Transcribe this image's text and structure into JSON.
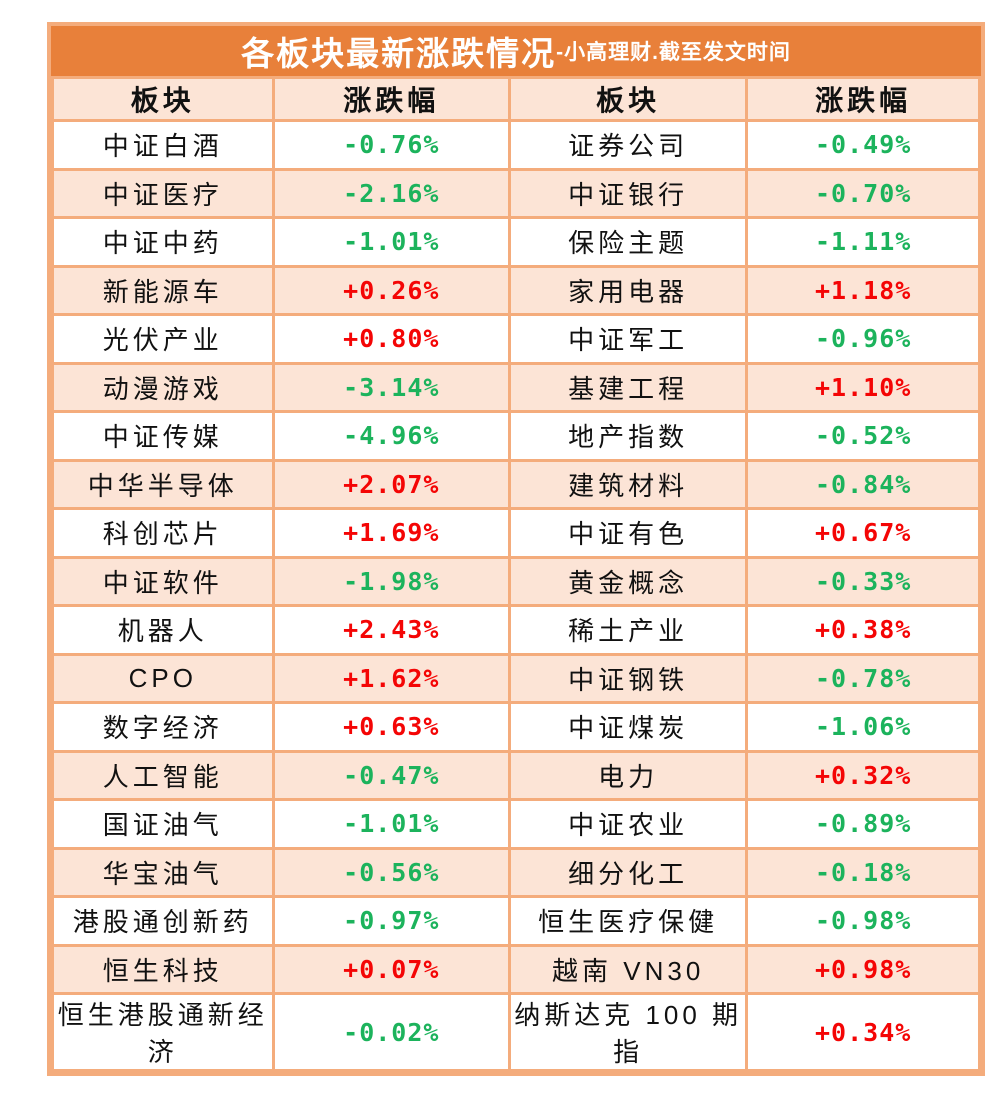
{
  "title": {
    "main": "各板块最新涨跌情况",
    "suffix": "-小高理财.截至发文时间"
  },
  "colors": {
    "header_bg": "#E8803A",
    "band_bg": "#FCE4D6",
    "border": "#F4AC7C",
    "up": "#F40505",
    "down": "#1CB35C"
  },
  "chart_data": {
    "type": "table",
    "title": "各板块最新涨跌情况-小高理财.截至发文时间",
    "columns": [
      "板块",
      "涨跌幅",
      "板块",
      "涨跌幅"
    ],
    "rows": [
      [
        "中证白酒",
        "-0.76%",
        "证券公司",
        "-0.49%"
      ],
      [
        "中证医疗",
        "-2.16%",
        "中证银行",
        "-0.70%"
      ],
      [
        "中证中药",
        "-1.01%",
        "保险主题",
        "-1.11%"
      ],
      [
        "新能源车",
        "+0.26%",
        "家用电器",
        "+1.18%"
      ],
      [
        "光伏产业",
        "+0.80%",
        "中证军工",
        "-0.96%"
      ],
      [
        "动漫游戏",
        "-3.14%",
        "基建工程",
        "+1.10%"
      ],
      [
        "中证传媒",
        "-4.96%",
        "地产指数",
        "-0.52%"
      ],
      [
        "中华半导体",
        "+2.07%",
        "建筑材料",
        "-0.84%"
      ],
      [
        "科创芯片",
        "+1.69%",
        "中证有色",
        "+0.67%"
      ],
      [
        "中证软件",
        "-1.98%",
        "黄金概念",
        "-0.33%"
      ],
      [
        "机器人",
        "+2.43%",
        "稀土产业",
        "+0.38%"
      ],
      [
        "CPO",
        "+1.62%",
        "中证钢铁",
        "-0.78%"
      ],
      [
        "数字经济",
        "+0.63%",
        "中证煤炭",
        "-1.06%"
      ],
      [
        "人工智能",
        "-0.47%",
        "电力",
        "+0.32%"
      ],
      [
        "国证油气",
        "-1.01%",
        "中证农业",
        "-0.89%"
      ],
      [
        "华宝油气",
        "-0.56%",
        "细分化工",
        "-0.18%"
      ],
      [
        "港股通创新药",
        "-0.97%",
        "恒生医疗保健",
        "-0.98%"
      ],
      [
        "恒生科技",
        "+0.07%",
        "越南 VN30",
        "+0.98%"
      ],
      [
        "恒生港股通新经济",
        "-0.02%",
        "纳斯达克 100 期指",
        "+0.34%"
      ]
    ]
  }
}
